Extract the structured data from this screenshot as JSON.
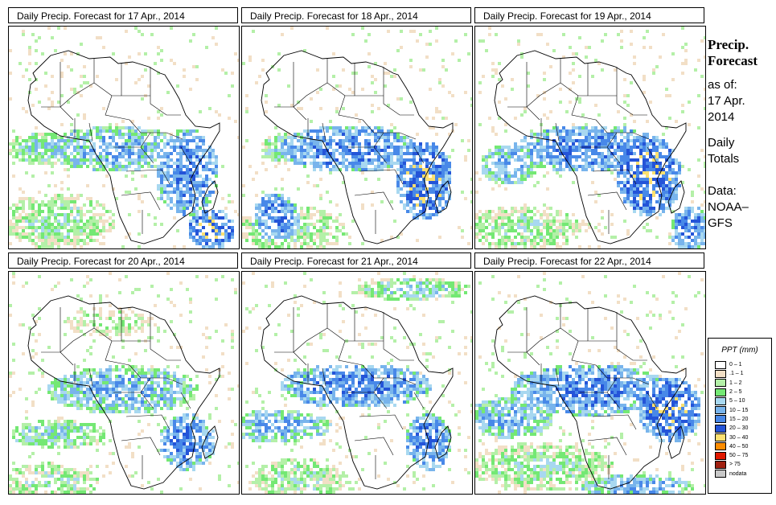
{
  "panels": [
    {
      "title": "Daily Precip. Forecast for  17 Apr., 2014"
    },
    {
      "title": "Daily Precip. Forecast for  18 Apr., 2014"
    },
    {
      "title": "Daily Precip. Forecast for  19 Apr., 2014"
    },
    {
      "title": "Daily Precip. Forecast for  20 Apr., 2014"
    },
    {
      "title": "Daily Precip. Forecast for  21 Apr., 2014"
    },
    {
      "title": "Daily Precip. Forecast for  22 Apr., 2014"
    }
  ],
  "sidebar": {
    "heading_line1": "Precip.",
    "heading_line2": "Forecast",
    "asof_line1": "as of:",
    "asof_line2": "17 Apr.",
    "asof_line3": "2014",
    "totals_line1": "Daily",
    "totals_line2": "Totals",
    "source_line1": "Data:",
    "source_line2": "NOAA–",
    "source_line3": "GFS"
  },
  "legend": {
    "title": "PPT (mm)",
    "items": [
      {
        "label": "0 – 1",
        "color": "#ffffff"
      },
      {
        "label": ".1 – 1",
        "color": "#f2dfc6"
      },
      {
        "label": "1 – 2",
        "color": "#b4f0a8"
      },
      {
        "label": "2 – 5",
        "color": "#74e874"
      },
      {
        "label": "5 – 10",
        "color": "#a8d8f0"
      },
      {
        "label": "10 – 15",
        "color": "#78b4ec"
      },
      {
        "label": "15 – 20",
        "color": "#4888e8"
      },
      {
        "label": "20 – 30",
        "color": "#2454d8"
      },
      {
        "label": "30 – 40",
        "color": "#fce070"
      },
      {
        "label": "40 – 50",
        "color": "#fc8c00"
      },
      {
        "label": "50 – 75",
        "color": "#e01800"
      },
      {
        "label": "> 75",
        "color": "#a02010"
      },
      {
        "label": "nodata",
        "color": "#c8c8c8"
      }
    ]
  }
}
